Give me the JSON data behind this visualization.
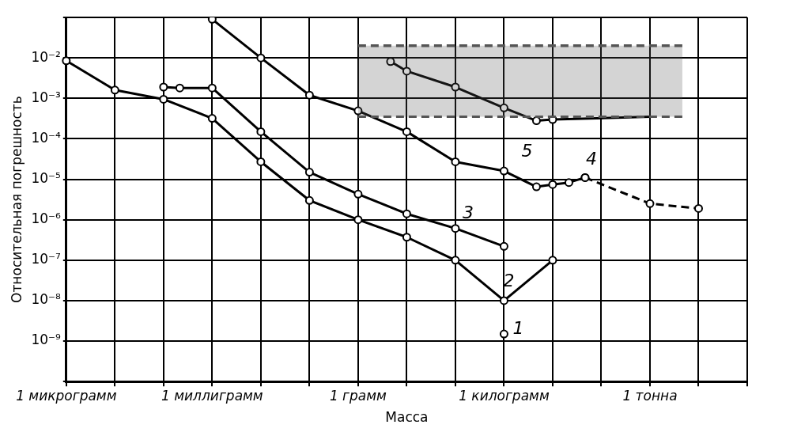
{
  "chart_data": {
    "type": "line",
    "xlabel": "Масса",
    "ylabel": "Относительная погрешность",
    "log": "y",
    "grid": true,
    "legend": false,
    "marker": "circle",
    "line_style": "solid",
    "categories": [
      "1 микрограмм",
      null,
      null,
      null,
      null,
      null,
      null,
      null,
      null,
      "1 миллиграмм",
      null,
      null,
      null,
      null,
      null,
      null,
      null,
      null,
      "1 грамм",
      null,
      null,
      null,
      null,
      null,
      null,
      null,
      null,
      "1 килограмм",
      null,
      null,
      null,
      null,
      null,
      null,
      null,
      null,
      "1 тонна",
      null,
      null,
      null,
      null,
      null,
      null
    ],
    "ylim": [
      1e-10,
      0.1
    ],
    "yticks": [
      {
        "value": 1e-10,
        "label": null
      },
      {
        "value": 1e-09,
        "label": "10⁻⁹"
      },
      {
        "value": 1e-08,
        "label": "10⁻⁸"
      },
      {
        "value": 1e-07,
        "label": "10⁻⁷"
      },
      {
        "value": 1e-06,
        "label": "10⁻⁶"
      },
      {
        "value": 1e-05,
        "label": "10⁻⁵"
      },
      {
        "value": 0.0001,
        "label": "10⁻⁴"
      },
      {
        "value": 0.001,
        "label": "10⁻³"
      },
      {
        "value": 0.01,
        "label": "10⁻²"
      },
      {
        "value": 0.1,
        "label": null
      }
    ],
    "series": [
      {
        "type": "area",
        "color": "#555555",
        "line_style": "dashed",
        "marker": "none",
        "values": [
          null,
          null,
          null,
          null,
          null,
          null,
          null,
          null,
          null,
          null,
          null,
          null,
          null,
          null,
          null,
          null,
          null,
          null,
          0.02,
          null,
          null,
          null,
          null,
          null,
          null,
          null,
          null,
          null,
          null,
          null,
          null,
          null,
          null,
          null,
          null,
          null,
          null,
          null,
          0.02,
          null,
          null,
          null,
          null
        ]
      },
      {
        "type": "line",
        "color": "#555555",
        "line_style": "dashed",
        "marker": "none",
        "values": [
          null,
          null,
          null,
          null,
          null,
          null,
          null,
          null,
          null,
          null,
          null,
          null,
          null,
          null,
          null,
          null,
          null,
          null,
          0.00035,
          null,
          null,
          null,
          null,
          null,
          null,
          null,
          null,
          null,
          null,
          null,
          null,
          null,
          null,
          null,
          null,
          null,
          null,
          null,
          0.00035,
          null,
          null,
          null,
          null
        ]
      },
      {
        "name": "1",
        "color": "#000000",
        "values": [
          null,
          null,
          null,
          null,
          null,
          null,
          null,
          null,
          null,
          null,
          null,
          null,
          null,
          null,
          null,
          null,
          null,
          null,
          null,
          null,
          null,
          null,
          null,
          null,
          null,
          null,
          null,
          1.5e-09,
          null,
          null,
          null,
          null,
          null,
          null,
          null,
          null,
          null,
          null,
          null,
          null,
          null,
          null,
          null
        ]
      },
      {
        "name": "2",
        "color": "#000000",
        "values": [
          0.0085,
          null,
          null,
          0.0016,
          null,
          null,
          0.00095,
          null,
          null,
          0.00032,
          null,
          null,
          2.7e-05,
          null,
          null,
          3e-06,
          null,
          null,
          1e-06,
          null,
          null,
          3.7e-07,
          null,
          null,
          1e-07,
          null,
          null,
          1e-08,
          null,
          null,
          1e-07,
          null,
          null,
          null,
          null,
          null,
          null,
          null,
          null,
          null,
          null,
          null,
          null
        ]
      },
      {
        "name": "3",
        "color": "#000000",
        "values": [
          null,
          null,
          null,
          null,
          null,
          null,
          0.0019,
          0.0018,
          null,
          0.0018,
          null,
          null,
          0.00015,
          null,
          null,
          1.5e-05,
          null,
          null,
          4.3e-06,
          null,
          null,
          1.4e-06,
          null,
          null,
          6.1e-07,
          null,
          null,
          2.2e-07,
          null,
          null,
          null,
          null,
          null,
          null,
          null,
          null,
          null,
          null,
          null,
          null,
          null,
          null,
          null
        ]
      },
      {
        "name": "4",
        "color": "#000000",
        "values": [
          null,
          null,
          null,
          null,
          null,
          null,
          null,
          null,
          null,
          0.09,
          null,
          null,
          0.01,
          null,
          null,
          0.0012,
          null,
          null,
          0.00049,
          null,
          null,
          0.00015,
          null,
          null,
          2.7e-05,
          null,
          null,
          1.6e-05,
          null,
          6.5e-06,
          7.4e-06,
          8.3e-06,
          1.1e-05,
          null,
          null,
          null,
          null,
          null,
          null,
          null,
          null,
          null,
          null
        ]
      },
      {
        "color": "#000000",
        "line_style": "dashed",
        "values": [
          null,
          null,
          null,
          null,
          null,
          null,
          null,
          null,
          null,
          null,
          null,
          null,
          null,
          null,
          null,
          null,
          null,
          null,
          null,
          null,
          null,
          null,
          null,
          null,
          null,
          null,
          null,
          null,
          null,
          null,
          null,
          null,
          1.1e-05,
          null,
          null,
          null,
          2.5e-06,
          null,
          null,
          1.9e-06,
          null,
          null,
          null
        ]
      },
      {
        "name": "5",
        "color": "#000000",
        "values": [
          null,
          null,
          null,
          null,
          null,
          null,
          null,
          null,
          null,
          null,
          null,
          null,
          null,
          null,
          null,
          null,
          null,
          null,
          null,
          null,
          0.0081,
          0.0047,
          null,
          null,
          0.0019,
          null,
          null,
          0.00058,
          null,
          0.00028,
          0.0003,
          null,
          null,
          null,
          null,
          null,
          null,
          null,
          null,
          null,
          null,
          null,
          null
        ]
      },
      {
        "color": "#000000",
        "marker": "none",
        "values": [
          null,
          null,
          null,
          null,
          null,
          null,
          null,
          null,
          null,
          null,
          null,
          null,
          null,
          null,
          null,
          null,
          null,
          null,
          null,
          null,
          null,
          null,
          null,
          null,
          null,
          null,
          null,
          null,
          null,
          null,
          0.0003,
          null,
          null,
          null,
          null,
          null,
          0.00035,
          null,
          null,
          null,
          null,
          null,
          null
        ]
      }
    ]
  }
}
